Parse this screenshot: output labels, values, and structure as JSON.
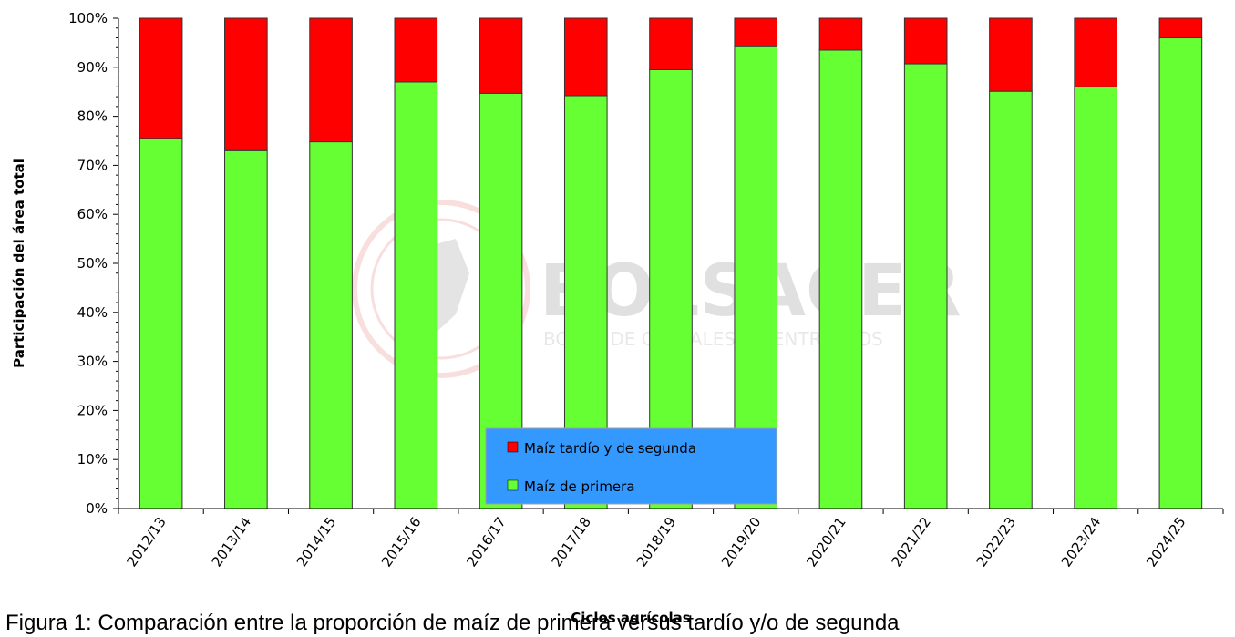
{
  "chart_data": {
    "type": "bar",
    "stacked": true,
    "categories": [
      "2012/13",
      "2013/14",
      "2014/15",
      "2015/16",
      "2016/17",
      "2017/18",
      "2018/19",
      "2019/20",
      "2020/21",
      "2021/22",
      "2022/23",
      "2023/24",
      "2024/25"
    ],
    "series": [
      {
        "name": "Maíz de primera",
        "color": "#66ff33",
        "values": [
          75.5,
          73,
          74.8,
          87,
          84.7,
          84.2,
          89.5,
          94.2,
          93.5,
          90.7,
          85.1,
          86,
          96
        ]
      },
      {
        "name": "Maíz tardío y de segunda",
        "color": "#ff0000",
        "values": [
          24.5,
          27,
          25.2,
          13,
          15.3,
          15.8,
          10.5,
          5.8,
          6.5,
          9.3,
          14.9,
          14,
          4
        ]
      }
    ],
    "xlabel": "Ciclos agrícolas",
    "ylabel": "Participación del área total",
    "ylim": [
      0,
      100
    ],
    "yticks": [
      "0%",
      "10%",
      "20%",
      "30%",
      "40%",
      "50%",
      "60%",
      "70%",
      "80%",
      "90%",
      "100%"
    ],
    "legend": {
      "position": "bottom-center",
      "background": "#3399ff"
    }
  },
  "watermark": {
    "title": "BOLSACER",
    "subtitle": "BOLSA DE CEREALES DE ENTRE RÍOS"
  },
  "caption": "Figura 1: Comparación entre la proporción de maíz de primera versus tardío y/o de segunda"
}
